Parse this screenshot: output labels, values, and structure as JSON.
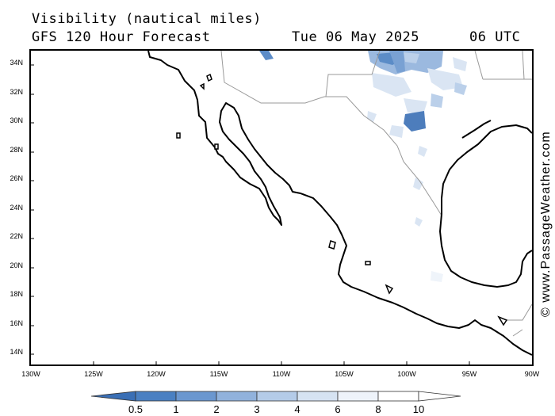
{
  "title": {
    "line1": "Visibility (nautical miles)",
    "line2": "GFS 120 Hour Forecast",
    "date": "Tue 06 May 2025",
    "time": "06 UTC"
  },
  "watermark": "© www.PassageWeather.com",
  "map": {
    "region": "Mexico and Gulf of Mexico",
    "lat_labels": [
      "34N",
      "32N",
      "30N",
      "28N",
      "26N",
      "24N",
      "22N",
      "20N",
      "18N",
      "16N",
      "14N"
    ],
    "lon_labels": [
      "130W",
      "125W",
      "120W",
      "115W",
      "110W",
      "105W",
      "100W",
      "95W",
      "90W"
    ],
    "land_color": "#ffffff",
    "coast_color": "#000000",
    "border_color": "#999999"
  },
  "legend": {
    "values": [
      "0.5",
      "1",
      "2",
      "3",
      "4",
      "6",
      "8",
      "10"
    ],
    "colors": [
      "#3a6fb5",
      "#4a80c2",
      "#6b97cf",
      "#91b2dc",
      "#b4cbe8",
      "#d6e3f2",
      "#eef3fa",
      "#ffffff"
    ]
  }
}
